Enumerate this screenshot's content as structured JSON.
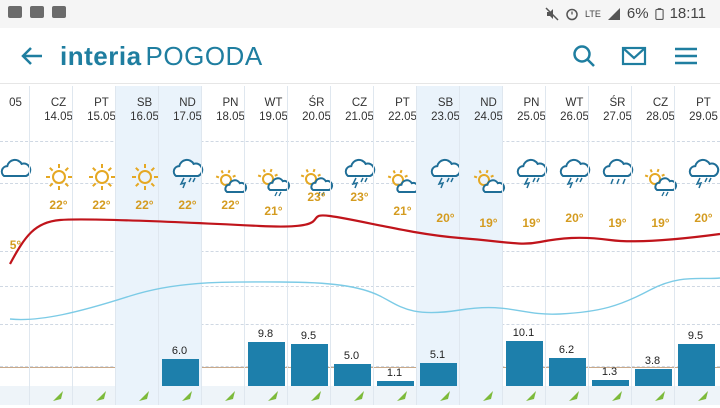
{
  "statusbar": {
    "battery": "6%",
    "time": "18:11",
    "network": "LTE"
  },
  "appbar": {
    "logo_brand": "interia",
    "logo_section": "POGODA"
  },
  "days": [
    {
      "day": "",
      "date": "05",
      "temp": "5°",
      "icon": "cloud-icon",
      "precip": null
    },
    {
      "day": "CZ",
      "date": "14.05",
      "temp": "22°",
      "icon": "sun-icon",
      "precip": null
    },
    {
      "day": "PT",
      "date": "15.05",
      "temp": "22°",
      "icon": "sun-icon",
      "precip": null
    },
    {
      "day": "SB",
      "date": "16.05",
      "temp": "22°",
      "icon": "sun-icon",
      "precip": null
    },
    {
      "day": "ND",
      "date": "17.05",
      "temp": "22°",
      "icon": "storm-cloud-icon",
      "precip": "6.0"
    },
    {
      "day": "PN",
      "date": "18.05",
      "temp": "22°",
      "icon": "partly-cloudy-icon",
      "precip": null
    },
    {
      "day": "WT",
      "date": "19.05",
      "temp": "21°",
      "icon": "sun-storm-icon",
      "precip": "9.8"
    },
    {
      "day": "ŚR",
      "date": "20.05",
      "temp": "23°",
      "icon": "sun-storm-icon",
      "precip": "9.5"
    },
    {
      "day": "CZ",
      "date": "21.05",
      "temp": "23°",
      "icon": "storm-cloud-icon",
      "precip": "5.0"
    },
    {
      "day": "PT",
      "date": "22.05",
      "temp": "21°",
      "icon": "partly-cloudy-icon",
      "precip": "1.1"
    },
    {
      "day": "SB",
      "date": "23.05",
      "temp": "20°",
      "icon": "storm-cloud-icon",
      "precip": "5.1"
    },
    {
      "day": "ND",
      "date": "24.05",
      "temp": "19°",
      "icon": "partly-cloudy-icon",
      "precip": null
    },
    {
      "day": "PN",
      "date": "25.05",
      "temp": "19°",
      "icon": "storm-cloud-icon",
      "precip": "10.1"
    },
    {
      "day": "WT",
      "date": "26.05",
      "temp": "20°",
      "icon": "storm-cloud-icon",
      "precip": "6.2"
    },
    {
      "day": "ŚR",
      "date": "27.05",
      "temp": "19°",
      "icon": "rain-cloud-icon",
      "precip": "1.3"
    },
    {
      "day": "CZ",
      "date": "28.05",
      "temp": "19°",
      "icon": "sun-rain-icon",
      "precip": "3.8"
    },
    {
      "day": "PT",
      "date": "29.05",
      "temp": "20°",
      "icon": "storm-cloud-icon",
      "precip": "9.5"
    }
  ],
  "colors": {
    "brand": "#1f7ea0",
    "temp_line": "#c0141b",
    "humidity_line": "#7ccbe6",
    "bar": "#1d7fab",
    "temp_text": "#d49b1f"
  }
}
